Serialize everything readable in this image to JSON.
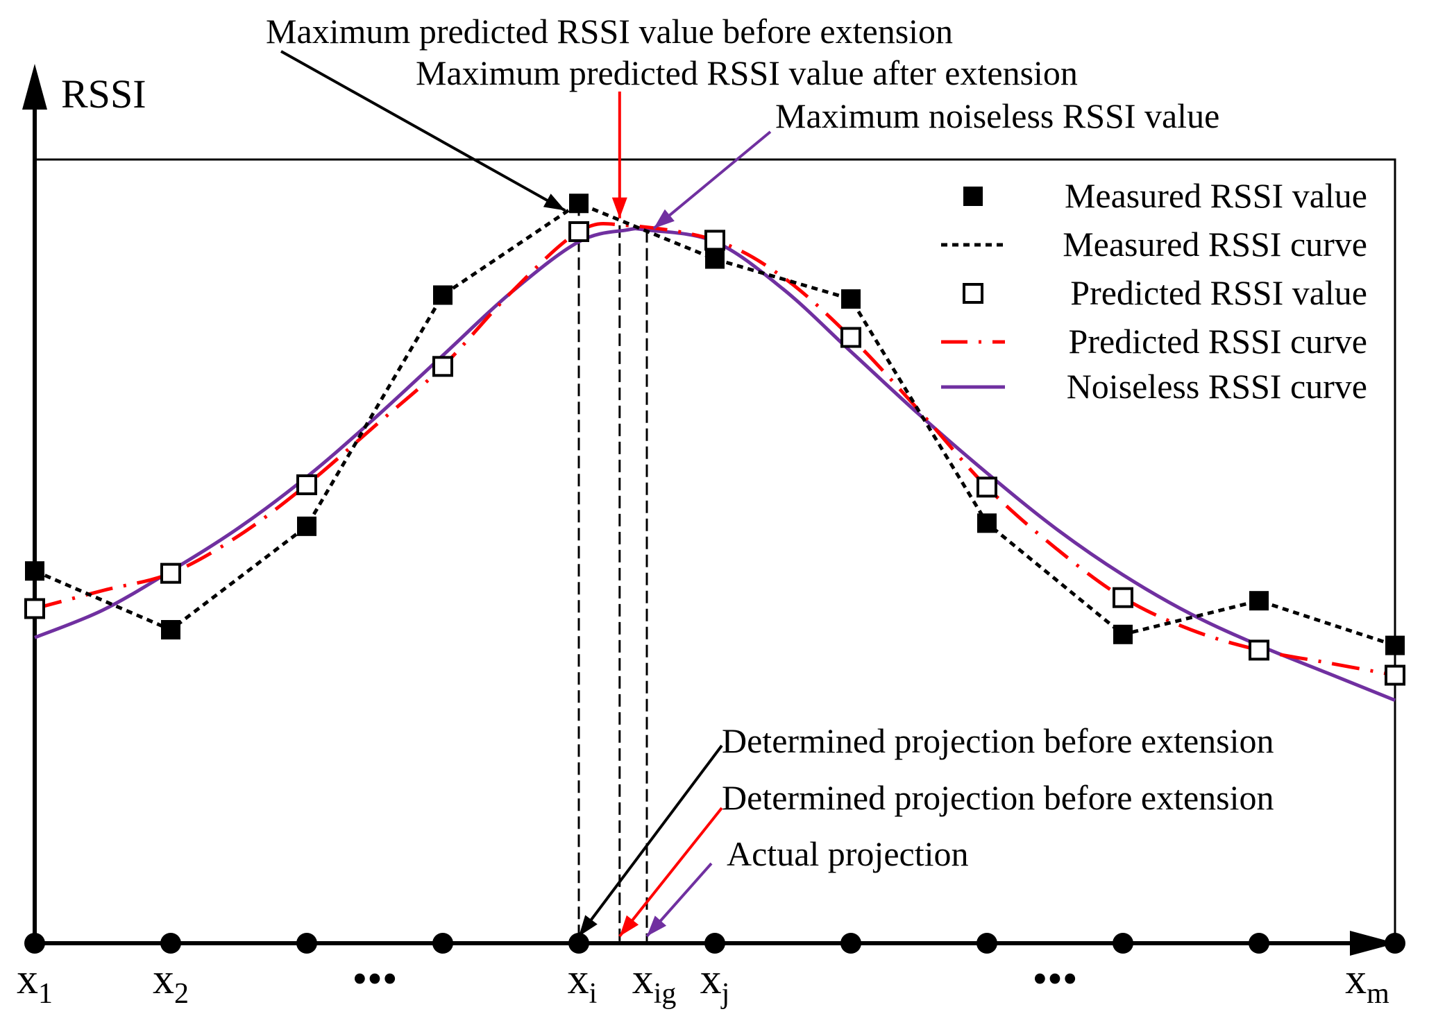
{
  "chart_data": {
    "type": "line",
    "title": "",
    "ylabel": "RSSI",
    "xlabel": "",
    "xlim": [
      0,
      10
    ],
    "ylim": [
      0,
      100
    ],
    "x": [
      0,
      1,
      2,
      3,
      4,
      5,
      6,
      7,
      8,
      9,
      10
    ],
    "tick_labels": [
      {
        "x": 0,
        "base": "x",
        "sub": "1"
      },
      {
        "x": 1,
        "base": "x",
        "sub": "2"
      },
      {
        "x": 2.5,
        "base": "•••",
        "sub": ""
      },
      {
        "x": 4,
        "base": "x",
        "sub": "i"
      },
      {
        "x": 4.35,
        "base": "x",
        "sub": "ig"
      },
      {
        "x": 5,
        "base": "x",
        "sub": "j"
      },
      {
        "x": 7.5,
        "base": "•••",
        "sub": ""
      },
      {
        "x": 10,
        "base": "x",
        "sub": "m"
      }
    ],
    "series": [
      {
        "name": "Measured RSSI value",
        "style": "filled-square",
        "values": [
          47.5,
          40.0,
          53.2,
          82.7,
          94.4,
          87.3,
          82.2,
          53.6,
          39.4,
          43.7,
          38.0
        ]
      },
      {
        "name": "Measured RSSI curve",
        "style": "black-dotted",
        "ref": "Measured RSSI value"
      },
      {
        "name": "Predicted RSSI value",
        "style": "open-square",
        "values": [
          42.7,
          47.2,
          58.5,
          73.6,
          90.8,
          89.7,
          77.3,
          58.2,
          44.1,
          37.4,
          34.2
        ]
      },
      {
        "name": "Predicted RSSI curve",
        "style": "red-dash-dot",
        "x": [
          0,
          0.5,
          1,
          1.5,
          2,
          2.5,
          3,
          3.5,
          4,
          4.35,
          5,
          5.5,
          6,
          6.5,
          7,
          7.5,
          8,
          8.5,
          9,
          9.5,
          10
        ],
        "values": [
          42.7,
          45.0,
          47.2,
          52.0,
          58.5,
          66.0,
          73.6,
          83.0,
          90.8,
          91.6,
          89.7,
          85.0,
          77.3,
          68.0,
          58.2,
          50.5,
          44.1,
          40.0,
          37.4,
          35.8,
          34.2
        ]
      },
      {
        "name": "Noiseless RSSI curve",
        "style": "purple-solid",
        "x": [
          0,
          0.5,
          1,
          1.5,
          2,
          2.5,
          3,
          3.5,
          4,
          4.35,
          4.5,
          5,
          5.5,
          6,
          6.5,
          7,
          7.5,
          8,
          8.5,
          9,
          9.5,
          10
        ],
        "values": [
          39.0,
          42.5,
          47.5,
          53.0,
          59.5,
          67.0,
          75.0,
          83.0,
          89.5,
          91.0,
          91.0,
          89.5,
          83.5,
          75.5,
          67.5,
          60.0,
          53.0,
          47.0,
          42.0,
          38.0,
          34.5,
          31.0
        ]
      }
    ],
    "projections": [
      {
        "x": 4,
        "y": 94.4,
        "color": "#000000"
      },
      {
        "x": 4.3,
        "y": 91.6,
        "color": "#000000"
      },
      {
        "x": 4.5,
        "y": 91.0,
        "color": "#000000"
      }
    ],
    "annotations": [
      {
        "text": "Maximum predicted RSSI value before extension",
        "color": "#000000",
        "target_x": 3.9,
        "target_y": 93.5
      },
      {
        "text": "Maximum predicted RSSI value after extension",
        "color": "#ff0000",
        "target_x": 4.3,
        "target_y": 92.5
      },
      {
        "text": "Maximum noiseless RSSI value",
        "color": "#7030a0",
        "target_x": 4.55,
        "target_y": 91.2
      },
      {
        "text": "Determined projection before extension",
        "color": "#000000",
        "target_x": 4.0,
        "target_y": 0
      },
      {
        "text": "Determined projection before extension",
        "color": "#ff0000",
        "target_x": 4.3,
        "target_y": 0
      },
      {
        "text": "Actual projection",
        "color": "#7030a0",
        "target_x": 4.5,
        "target_y": 0
      }
    ],
    "legend": {
      "placement": "top-right",
      "entries": [
        "Measured RSSI value",
        "Measured RSSI curve",
        "Predicted RSSI value",
        "Predicted RSSI curve",
        "Noiseless RSSI curve"
      ]
    },
    "colors": {
      "measured": "#000000",
      "predicted": "#ff0000",
      "noiseless": "#7030a0"
    }
  }
}
